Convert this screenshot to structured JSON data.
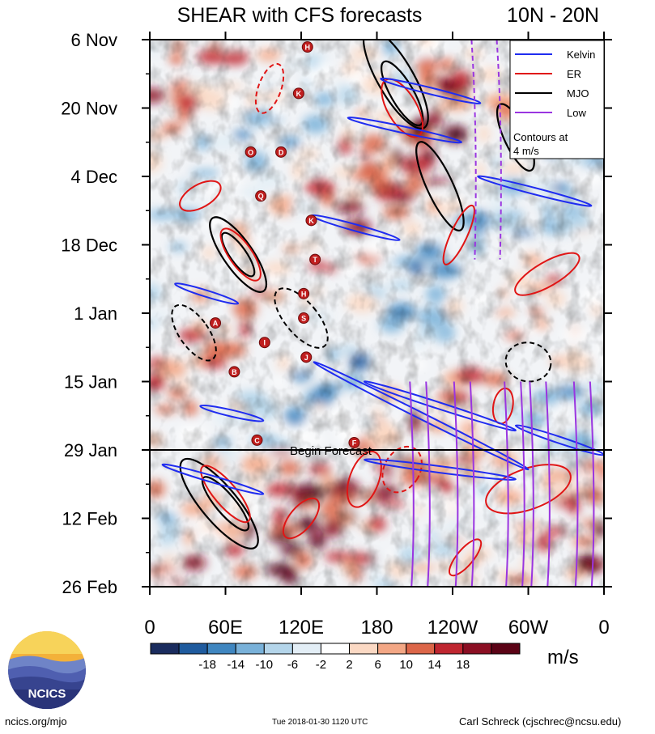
{
  "header": {
    "title": "SHEAR with CFS forecasts",
    "region": "10N - 20N"
  },
  "chart_data": {
    "type": "heatmap",
    "title": "SHEAR with CFS forecasts",
    "subtitle": "10N - 20N",
    "x_ticks": [
      "0",
      "60E",
      "120E",
      "180",
      "120W",
      "60W",
      "0"
    ],
    "x_tick_deg": [
      0,
      60,
      120,
      180,
      240,
      300,
      360
    ],
    "y_ticks": [
      "6 Nov",
      "20 Nov",
      "4 Dec",
      "18 Dec",
      "1 Jan",
      "15 Jan",
      "29 Jan",
      "12 Feb",
      "26 Feb"
    ],
    "y_tick_days": [
      0,
      14,
      28,
      42,
      56,
      70,
      84,
      98,
      112
    ],
    "time_range_days": [
      0,
      112
    ],
    "longitude_range_deg": [
      0,
      360
    ],
    "forecast_start_day": 84,
    "forecast_label": "Begin Forecast",
    "colorbar": {
      "unit": "m/s",
      "levels": [
        -18,
        -14,
        -10,
        -6,
        -2,
        2,
        6,
        10,
        14,
        18
      ],
      "labels": [
        "-18",
        "-14",
        "-10",
        "-6",
        "-2",
        "2",
        "6",
        "10",
        "14",
        "18"
      ],
      "colors": [
        "#1a2c5e",
        "#1f5b9e",
        "#3f86c0",
        "#79b1d9",
        "#b4d5ea",
        "#e3eef6",
        "#ffffff",
        "#fbd9c4",
        "#f3a785",
        "#dc6649",
        "#bf2630",
        "#8b0f23",
        "#5b0316"
      ]
    },
    "legend": {
      "placement": "top-right",
      "entries": [
        {
          "label": "Kelvin",
          "color": "#1f2cf0"
        },
        {
          "label": "ER",
          "color": "#e01515"
        },
        {
          "label": "MJO",
          "color": "#000000"
        },
        {
          "label": "Low",
          "color": "#9a35e0"
        }
      ],
      "note_lines": [
        "Contours at",
        "4 m/s"
      ]
    },
    "storm_markers": [
      {
        "label": "H",
        "lon": 125,
        "day": 1.5
      },
      {
        "label": "K",
        "lon": 118,
        "day": 11
      },
      {
        "label": "O",
        "lon": 80,
        "day": 23
      },
      {
        "label": "D",
        "lon": 104,
        "day": 23
      },
      {
        "label": "Q",
        "lon": 88,
        "day": 32
      },
      {
        "label": "K",
        "lon": 128,
        "day": 37
      },
      {
        "label": "T",
        "lon": 131,
        "day": 45
      },
      {
        "label": "H",
        "lon": 122,
        "day": 52
      },
      {
        "label": "S",
        "lon": 122,
        "day": 57
      },
      {
        "label": "A",
        "lon": 52,
        "day": 58
      },
      {
        "label": "I",
        "lon": 91,
        "day": 62
      },
      {
        "label": "J",
        "lon": 124,
        "day": 65
      },
      {
        "label": "B",
        "lon": 67,
        "day": 68
      },
      {
        "label": "C",
        "lon": 85,
        "day": 82
      },
      {
        "label": "F",
        "lon": 162,
        "day": 82.5
      }
    ],
    "kelvin_tracks": [
      {
        "lon": [
          183,
          262
        ],
        "day": [
          8,
          13
        ]
      },
      {
        "lon": [
          157,
          247
        ],
        "day": [
          16,
          21
        ]
      },
      {
        "lon": [
          128,
          198
        ],
        "day": [
          36,
          41
        ]
      },
      {
        "lon": [
          20,
          70
        ],
        "day": [
          50,
          54
        ]
      },
      {
        "lon": [
          260,
          350
        ],
        "day": [
          28,
          34
        ]
      },
      {
        "lon": [
          170,
          290
        ],
        "day": [
          70,
          80
        ]
      },
      {
        "lon": [
          290,
          360
        ],
        "day": [
          79,
          85
        ]
      },
      {
        "lon": [
          40,
          90
        ],
        "day": [
          75,
          78
        ]
      },
      {
        "lon": [
          10,
          90
        ],
        "day": [
          87,
          93
        ]
      },
      {
        "lon": [
          130,
          300
        ],
        "day": [
          66,
          88
        ]
      },
      {
        "lon": [
          170,
          290
        ],
        "day": [
          86,
          90
        ]
      }
    ],
    "low_lines_lon": [
      210,
      245,
      285,
      305,
      340
    ]
  },
  "footer": {
    "left": "ncics.org/mjo",
    "center": "Tue 2018-01-30 1120 UTC",
    "right": "Carl Schreck (cjschrec@ncsu.edu)",
    "logo_text": "NCICS"
  }
}
